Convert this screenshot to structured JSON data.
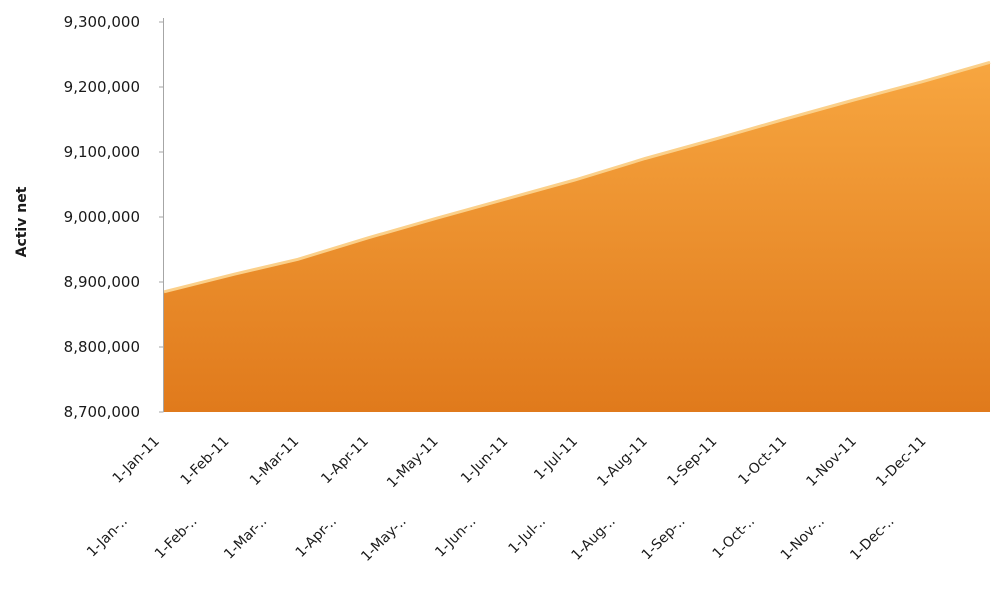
{
  "chart_data": {
    "type": "area",
    "title": "",
    "xlabel": "",
    "ylabel": "Activ net",
    "ylim": [
      8700000,
      9300000
    ],
    "yticks": [
      "8,700,000",
      "8,800,000",
      "8,900,000",
      "9,000,000",
      "9,100,000",
      "9,200,000",
      "9,300,000"
    ],
    "xticks_row1": [
      "1-Jan-11",
      "1-Feb-11",
      "1-Mar-11",
      "1-Apr-11",
      "1-May-11",
      "1-Jun-11",
      "1-Jul-11",
      "1-Aug-11",
      "1-Sep-11",
      "1-Oct-11",
      "1-Nov-11",
      "1-Dec-11"
    ],
    "xticks_row2": [
      "1-Jan-..",
      "1-Feb-..",
      "1-Mar-..",
      "1-Apr-..",
      "1-May-..",
      "1-Jun-..",
      "1-Jul-..",
      "1-Aug-..",
      "1-Sep-..",
      "1-Oct-..",
      "1-Nov-..",
      "1-Dec-.."
    ],
    "x": [
      "2011-01-01",
      "2011-02-01",
      "2011-03-01",
      "2011-04-01",
      "2011-05-01",
      "2011-06-01",
      "2011-07-01",
      "2011-08-01",
      "2011-09-01",
      "2011-10-01",
      "2011-11-01",
      "2011-12-01",
      "2011-12-31"
    ],
    "series": [
      {
        "values": [
          8885000,
          8912000,
          8935000,
          8968000,
          8998000,
          9028000,
          9057000,
          9090000,
          9120000,
          9150000,
          9180000,
          9208000,
          9238000
        ]
      }
    ],
    "grid": false,
    "legend": "none",
    "colors": {
      "fill_top": "#f7a640",
      "fill_bottom": "#e07a1c",
      "edge": "#fbd08a",
      "axis": "#a6a6a6"
    }
  }
}
